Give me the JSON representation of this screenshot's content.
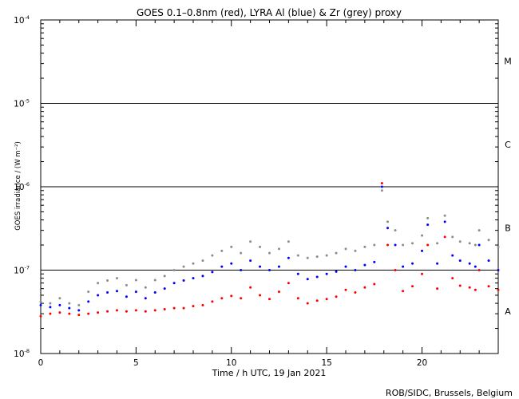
{
  "chart_data": {
    "type": "scatter",
    "title": "GOES 0.1–0.8nm (red), LYRA Al (blue) & Zr (grey) proxy",
    "xlabel": "Time / h UTC, 19 Jan 2021",
    "ylabel": "GOES irradiance / (W m⁻²)",
    "credit": "ROB/SIDC, Brussels, Belgium",
    "xlim": [
      0,
      24
    ],
    "ylim": [
      1e-08,
      0.0001
    ],
    "yscale": "log",
    "grid": false,
    "x_ticks": [
      0,
      5,
      10,
      15,
      20
    ],
    "y_ticks": [
      {
        "base": "10",
        "exp": "-8"
      },
      {
        "base": "10",
        "exp": "-7"
      },
      {
        "base": "10",
        "exp": "-6"
      },
      {
        "base": "10",
        "exp": "-5"
      },
      {
        "base": "10",
        "exp": "-4"
      }
    ],
    "flare_class_lines": [
      1e-07,
      1e-06,
      1e-05
    ],
    "flare_classes": [
      {
        "label": "A",
        "y": 3.2e-08
      },
      {
        "label": "B",
        "y": 3.2e-07
      },
      {
        "label": "C",
        "y": 3.2e-06
      },
      {
        "label": "M",
        "y": 3.2e-05
      }
    ],
    "series": [
      {
        "color": "#ff0000",
        "x": [
          0,
          0.5,
          1,
          1.5,
          2,
          2.5,
          3,
          3.5,
          4,
          4.5,
          5,
          5.5,
          6,
          6.5,
          7,
          7.5,
          8,
          8.5,
          9,
          9.5,
          10,
          10.5,
          11,
          11.5,
          12,
          12.5,
          13,
          13.5,
          14,
          14.5,
          15,
          15.5,
          16,
          16.5,
          17,
          17.5,
          17.9,
          18.2,
          18.6,
          19,
          19.5,
          20,
          20.3,
          20.8,
          21.2,
          21.6,
          22,
          22.5,
          22.8,
          23,
          23.5,
          24
        ],
        "values": [
          2.8e-08,
          3e-08,
          3.1e-08,
          3e-08,
          2.9e-08,
          3e-08,
          3.1e-08,
          3.2e-08,
          3.3e-08,
          3.2e-08,
          3.3e-08,
          3.2e-08,
          3.3e-08,
          3.4e-08,
          3.5e-08,
          3.5e-08,
          3.7e-08,
          3.8e-08,
          4.2e-08,
          4.6e-08,
          4.9e-08,
          4.6e-08,
          6.2e-08,
          5e-08,
          4.5e-08,
          5.5e-08,
          7e-08,
          4.6e-08,
          4e-08,
          4.3e-08,
          4.5e-08,
          4.8e-08,
          5.8e-08,
          5.4e-08,
          6.2e-08,
          6.8e-08,
          1.1e-06,
          2e-07,
          1e-07,
          5.6e-08,
          6.4e-08,
          9e-08,
          2e-07,
          6e-08,
          2.5e-07,
          8e-08,
          6.5e-08,
          6.2e-08,
          5.8e-08,
          1e-07,
          6.4e-08,
          5.8e-08
        ]
      },
      {
        "color": "#0000ff",
        "x": [
          0,
          0.5,
          1,
          1.5,
          2,
          2.5,
          3,
          3.5,
          4,
          4.5,
          5,
          5.5,
          6,
          6.5,
          7,
          7.5,
          8,
          8.5,
          9,
          9.5,
          10,
          10.5,
          11,
          11.5,
          12,
          12.5,
          13,
          13.5,
          14,
          14.5,
          15,
          15.5,
          16,
          16.5,
          17,
          17.5,
          17.9,
          18.2,
          18.6,
          19,
          19.5,
          20,
          20.3,
          20.8,
          21.2,
          21.6,
          22,
          22.5,
          22.8,
          23,
          23.5,
          24
        ],
        "values": [
          3.8e-08,
          3.6e-08,
          3.8e-08,
          3.5e-08,
          3.3e-08,
          4.2e-08,
          5e-08,
          5.4e-08,
          5.6e-08,
          4.8e-08,
          5.5e-08,
          4.6e-08,
          5.4e-08,
          6e-08,
          7e-08,
          7.5e-08,
          8e-08,
          8.5e-08,
          9.5e-08,
          1.1e-07,
          1.2e-07,
          1e-07,
          1.3e-07,
          1.1e-07,
          1e-07,
          1.1e-07,
          1.4e-07,
          9e-08,
          7.8e-08,
          8.3e-08,
          9e-08,
          9.6e-08,
          1.1e-07,
          1e-07,
          1.15e-07,
          1.25e-07,
          1e-06,
          3.2e-07,
          2e-07,
          1.1e-07,
          1.2e-07,
          1.7e-07,
          3.5e-07,
          1.2e-07,
          3.8e-07,
          1.5e-07,
          1.3e-07,
          1.2e-07,
          1.1e-07,
          2e-07,
          1.3e-07,
          1e-07
        ]
      },
      {
        "color": "#8c8c8c",
        "x": [
          0,
          0.5,
          1,
          1.5,
          2,
          2.5,
          3,
          3.5,
          4,
          4.5,
          5,
          5.5,
          6,
          6.5,
          7,
          7.5,
          8,
          8.5,
          9,
          9.5,
          10,
          10.5,
          11,
          11.5,
          12,
          12.5,
          13,
          13.5,
          14,
          14.5,
          15,
          15.5,
          16,
          16.5,
          17,
          17.5,
          17.9,
          18.2,
          18.6,
          19,
          19.5,
          20,
          20.3,
          20.8,
          21.2,
          21.6,
          22,
          22.5,
          22.8,
          23,
          23.5,
          24
        ],
        "values": [
          4.2e-08,
          4e-08,
          4.6e-08,
          4e-08,
          3.8e-08,
          5.5e-08,
          7e-08,
          7.5e-08,
          8e-08,
          6.6e-08,
          7.6e-08,
          6.2e-08,
          7.6e-08,
          8.5e-08,
          1e-07,
          1.1e-07,
          1.2e-07,
          1.3e-07,
          1.5e-07,
          1.7e-07,
          1.9e-07,
          1.6e-07,
          2.2e-07,
          1.9e-07,
          1.6e-07,
          1.8e-07,
          2.2e-07,
          1.5e-07,
          1.4e-07,
          1.45e-07,
          1.5e-07,
          1.6e-07,
          1.8e-07,
          1.7e-07,
          1.9e-07,
          2e-07,
          9e-07,
          3.8e-07,
          3e-07,
          2e-07,
          2.1e-07,
          2.6e-07,
          4.2e-07,
          2.1e-07,
          4.5e-07,
          2.5e-07,
          2.2e-07,
          2.1e-07,
          2e-07,
          3e-07,
          2.3e-07,
          1.9e-07
        ]
      }
    ]
  }
}
